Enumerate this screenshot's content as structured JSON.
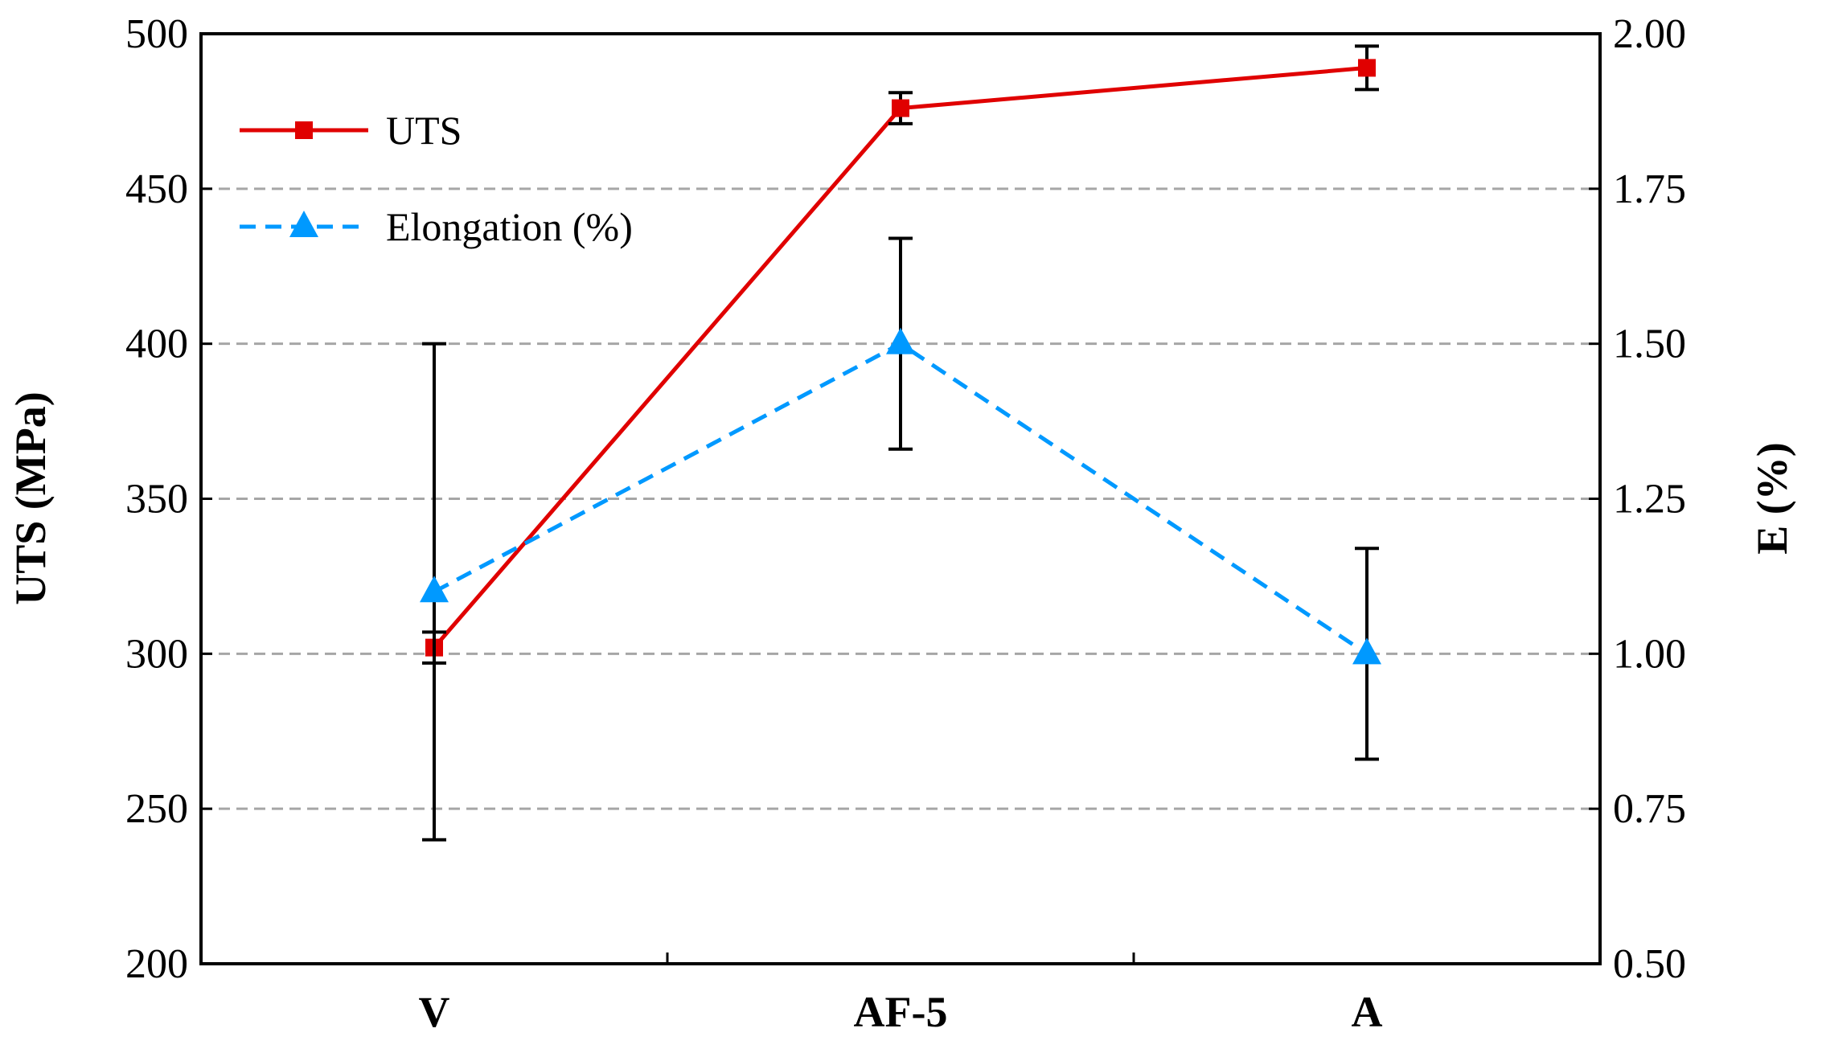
{
  "chart_data": {
    "type": "line",
    "categories": [
      "V",
      "AF-5",
      "A"
    ],
    "series": [
      {
        "name": "UTS",
        "axis": "left",
        "color": "#e00000",
        "line_style": "solid",
        "marker": "square",
        "values": [
          302,
          476,
          489
        ],
        "error": [
          5,
          5,
          7
        ]
      },
      {
        "name": "Elongation (%)",
        "axis": "right",
        "color": "#0099ff",
        "line_style": "dashed",
        "marker": "triangle",
        "values": [
          1.1,
          1.5,
          1.0
        ],
        "error": [
          0.4,
          0.17,
          0.17
        ]
      }
    ],
    "ylabel": "UTS (MPa)",
    "ylabel_right": "E (%)",
    "xlabel": "",
    "ylim": [
      200,
      500
    ],
    "ylim_right": [
      0.5,
      2.0
    ],
    "yticks": [
      "200",
      "250",
      "300",
      "350",
      "400",
      "450",
      "500"
    ],
    "yticks_right": [
      "0.50",
      "0.75",
      "1.00",
      "1.25",
      "1.50",
      "1.75",
      "2.00"
    ],
    "grid": "horizontal dashed",
    "grid_color": "#a6a6a6",
    "legend_position": "top-left"
  }
}
